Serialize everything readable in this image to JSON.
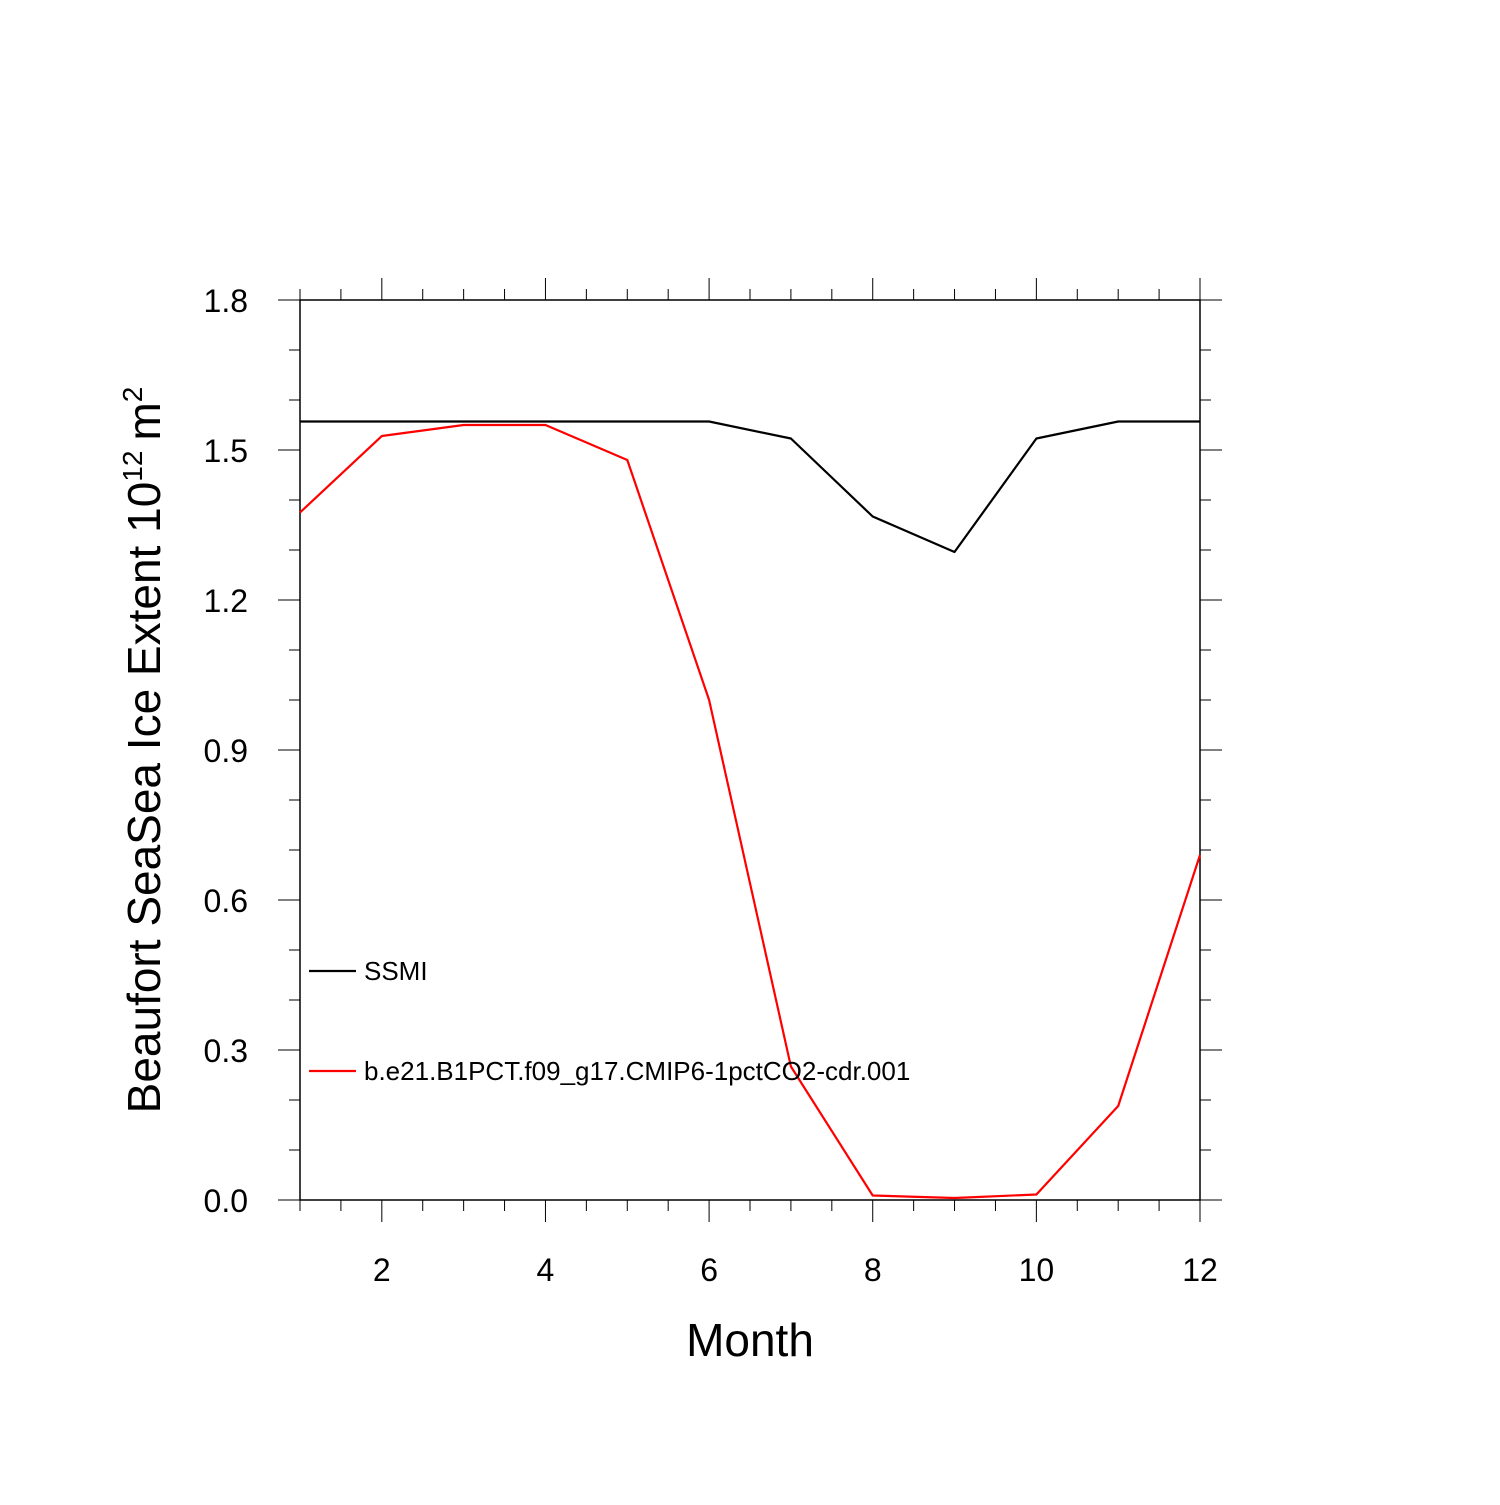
{
  "chart_data": {
    "type": "line",
    "title": "",
    "xlabel": "Month",
    "ylabel": {
      "prefix": "Beaufort SeaSea Ice Extent 10",
      "exponent": "12",
      "unit": "m",
      "unit_exponent": "2"
    },
    "xlim": [
      1,
      12
    ],
    "ylim": [
      0.0,
      1.8
    ],
    "xticks": [
      2,
      4,
      6,
      8,
      10,
      12
    ],
    "xtick_labels": [
      "2",
      "4",
      "6",
      "8",
      "10",
      "12"
    ],
    "yticks": [
      0.0,
      0.3,
      0.6,
      0.9,
      1.2,
      1.5,
      1.8
    ],
    "ytick_labels": [
      "0.0",
      "0.3",
      "0.6",
      "0.9",
      "1.2",
      "1.5",
      "1.8"
    ],
    "grid": false,
    "legend_position": "lower-left inside plot",
    "x": [
      1,
      2,
      3,
      4,
      5,
      6,
      7,
      8,
      9,
      10,
      11,
      12
    ],
    "series": [
      {
        "name": "SSMI",
        "color": "#000000",
        "values": [
          1.557,
          1.557,
          1.557,
          1.557,
          1.557,
          1.557,
          1.523,
          1.367,
          1.296,
          1.523,
          1.557,
          1.557
        ]
      },
      {
        "name": "b.e21.B1PCT.f09_g17.CMIP6-1pctCO2-cdr.001",
        "color": "#ff0000",
        "values": [
          1.375,
          1.528,
          1.55,
          1.55,
          1.48,
          1.0,
          0.267,
          0.009,
          0.004,
          0.011,
          0.188,
          0.69
        ]
      }
    ]
  }
}
